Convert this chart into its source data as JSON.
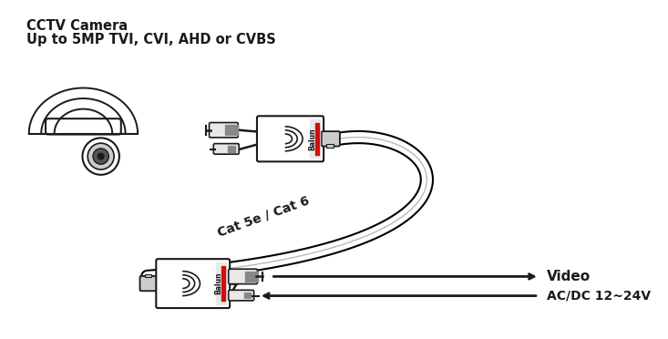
{
  "title_line1": "CCTV Camera",
  "title_line2": "Up to 5MP TVI, CVI, AHD or CVBS",
  "cat_label": "Cat 5e / Cat 6",
  "video_label": "Video",
  "power_label": "AC/DC 12~24V",
  "bg_color": "#ffffff",
  "line_color": "#1a1a1a",
  "dark_gray": "#555555",
  "mid_gray": "#888888",
  "light_gray": "#cccccc",
  "very_light_gray": "#e8e8e8",
  "red_stripe": "#cc1111",
  "font_size_title1": 10.5,
  "font_size_title2": 10.5,
  "font_size_label": 10,
  "font_size_balun": 5.5,
  "font_size_cat": 10
}
